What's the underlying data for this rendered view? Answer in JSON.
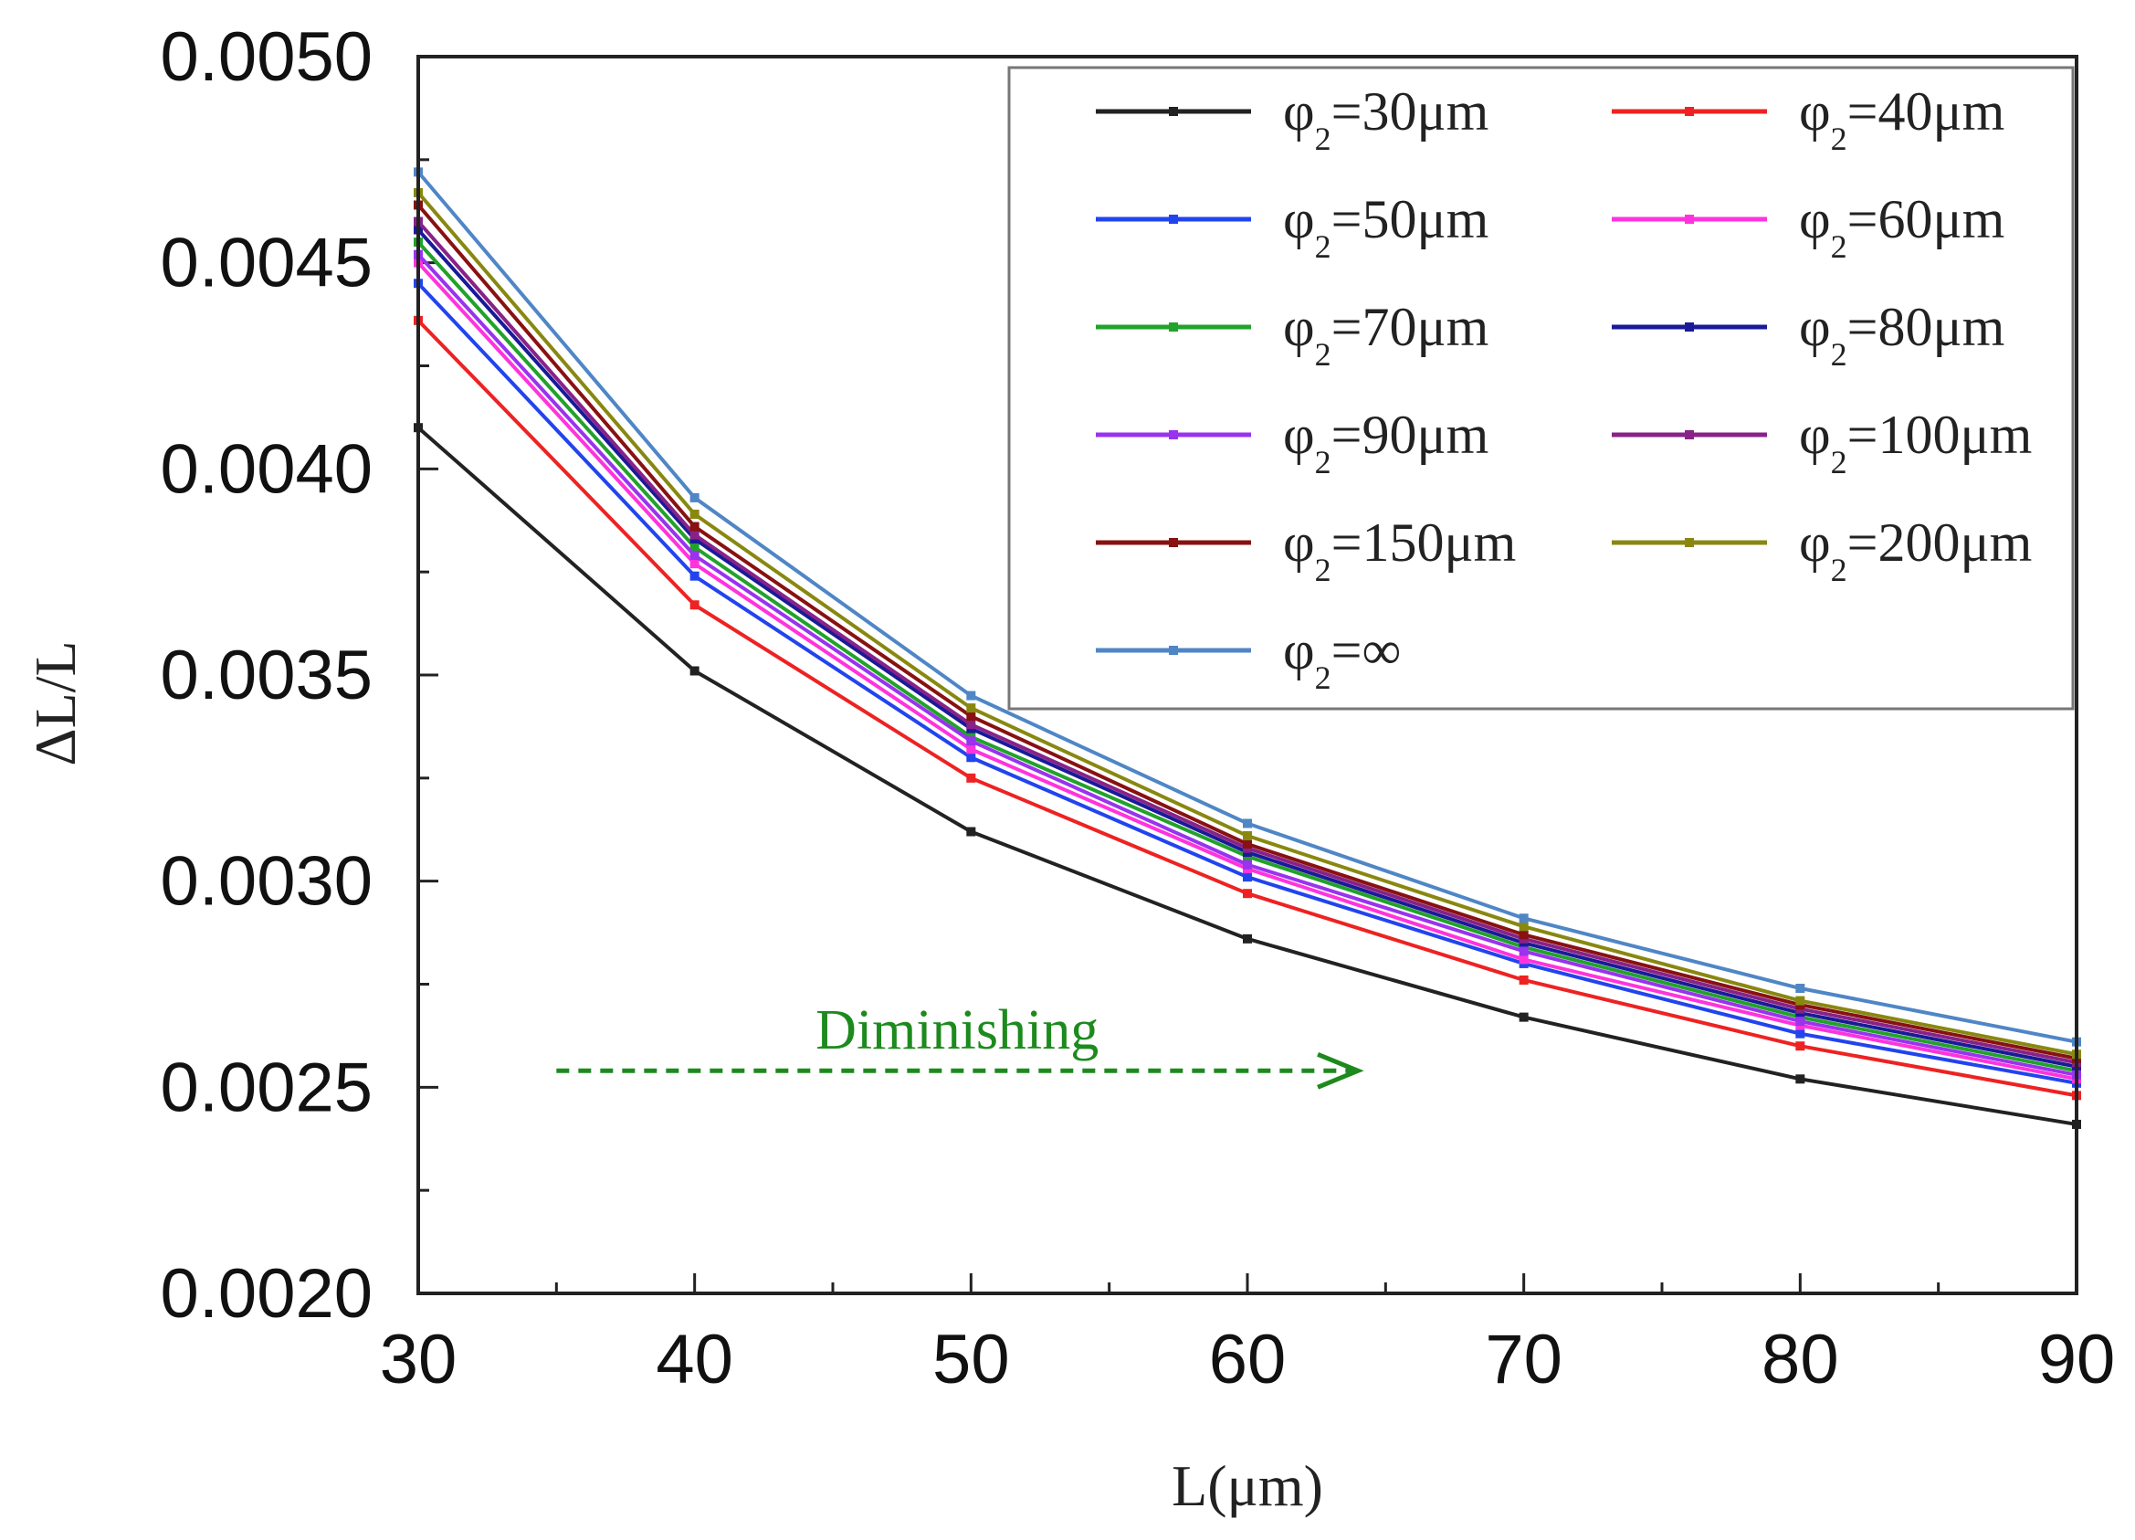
{
  "chart_data": {
    "type": "line",
    "xlabel": "L(μm)",
    "ylabel": "ΔL/L",
    "xlim": [
      30,
      90
    ],
    "ylim": [
      0.002,
      0.005
    ],
    "x": [
      30,
      40,
      50,
      60,
      70,
      80,
      90
    ],
    "x_ticks": [
      "30",
      "40",
      "50",
      "60",
      "70",
      "80",
      "90"
    ],
    "y_ticks": [
      0.002,
      0.0025,
      0.003,
      0.0035,
      0.004,
      0.0045,
      0.005
    ],
    "y_tick_labels": [
      "0.0020",
      "0.0025",
      "0.0030",
      "0.0035",
      "0.0040",
      "0.0045",
      "0.0050"
    ],
    "legend_position": "top-right",
    "series": [
      {
        "name": "φ2=30μm",
        "symbol": "φ",
        "sub": "2",
        "suffix": "=30μm",
        "color": "#222222",
        "values": [
          0.0041,
          0.00351,
          0.00312,
          0.00286,
          0.00267,
          0.00252,
          0.00241
        ]
      },
      {
        "name": "φ2=40μm",
        "symbol": "φ",
        "sub": "2",
        "suffix": "=40μm",
        "color": "#ee2222",
        "values": [
          0.00436,
          0.00367,
          0.00325,
          0.00297,
          0.00276,
          0.0026,
          0.00248
        ]
      },
      {
        "name": "φ2=50μm",
        "symbol": "φ",
        "sub": "2",
        "suffix": "=50μm",
        "color": "#2244ee",
        "values": [
          0.00445,
          0.00374,
          0.0033,
          0.00301,
          0.0028,
          0.00263,
          0.00251
        ]
      },
      {
        "name": "φ2=60μm",
        "symbol": "φ",
        "sub": "2",
        "suffix": "=60μm",
        "color": "#ff33dd",
        "values": [
          0.0045,
          0.00377,
          0.00332,
          0.00303,
          0.00281,
          0.00265,
          0.00252
        ]
      },
      {
        "name": "φ2=70μm",
        "symbol": "φ",
        "sub": "2",
        "suffix": "=70μm",
        "color": "#22a22a",
        "values": [
          0.00455,
          0.00381,
          0.00335,
          0.00306,
          0.00284,
          0.00267,
          0.00254
        ]
      },
      {
        "name": "φ2=80μm",
        "symbol": "φ",
        "sub": "2",
        "suffix": "=80μm",
        "color": "#1a1a99",
        "values": [
          0.00458,
          0.00383,
          0.00337,
          0.00307,
          0.00285,
          0.00268,
          0.00255
        ]
      },
      {
        "name": "φ2=90μm",
        "symbol": "φ",
        "sub": "2",
        "suffix": "=90μm",
        "color": "#9933ee",
        "values": [
          0.00452,
          0.00379,
          0.00334,
          0.00304,
          0.00283,
          0.00266,
          0.00253
        ]
      },
      {
        "name": "φ2=100μm",
        "symbol": "φ",
        "sub": "2",
        "suffix": "=100μm",
        "color": "#882288",
        "values": [
          0.0046,
          0.00384,
          0.00338,
          0.00308,
          0.00286,
          0.00269,
          0.00256
        ]
      },
      {
        "name": "φ2=150μm",
        "symbol": "φ",
        "sub": "2",
        "suffix": "=150μm",
        "color": "#881111",
        "values": [
          0.00464,
          0.00386,
          0.0034,
          0.00309,
          0.00287,
          0.0027,
          0.00257
        ]
      },
      {
        "name": "φ2=200μm",
        "symbol": "φ",
        "sub": "2",
        "suffix": "=200μm",
        "color": "#888811",
        "values": [
          0.00467,
          0.00389,
          0.00342,
          0.00311,
          0.00289,
          0.00271,
          0.00258
        ]
      },
      {
        "name": "φ2=∞",
        "symbol": "φ",
        "sub": "2",
        "suffix": "=∞",
        "color": "#4f86c6",
        "values": [
          0.00472,
          0.00393,
          0.00345,
          0.00314,
          0.00291,
          0.00274,
          0.00261
        ]
      }
    ],
    "annotation": {
      "text": "Diminishing",
      "color": "#1d8a1d",
      "from_x": 35,
      "to_x": 64,
      "y": 0.00254
    }
  }
}
